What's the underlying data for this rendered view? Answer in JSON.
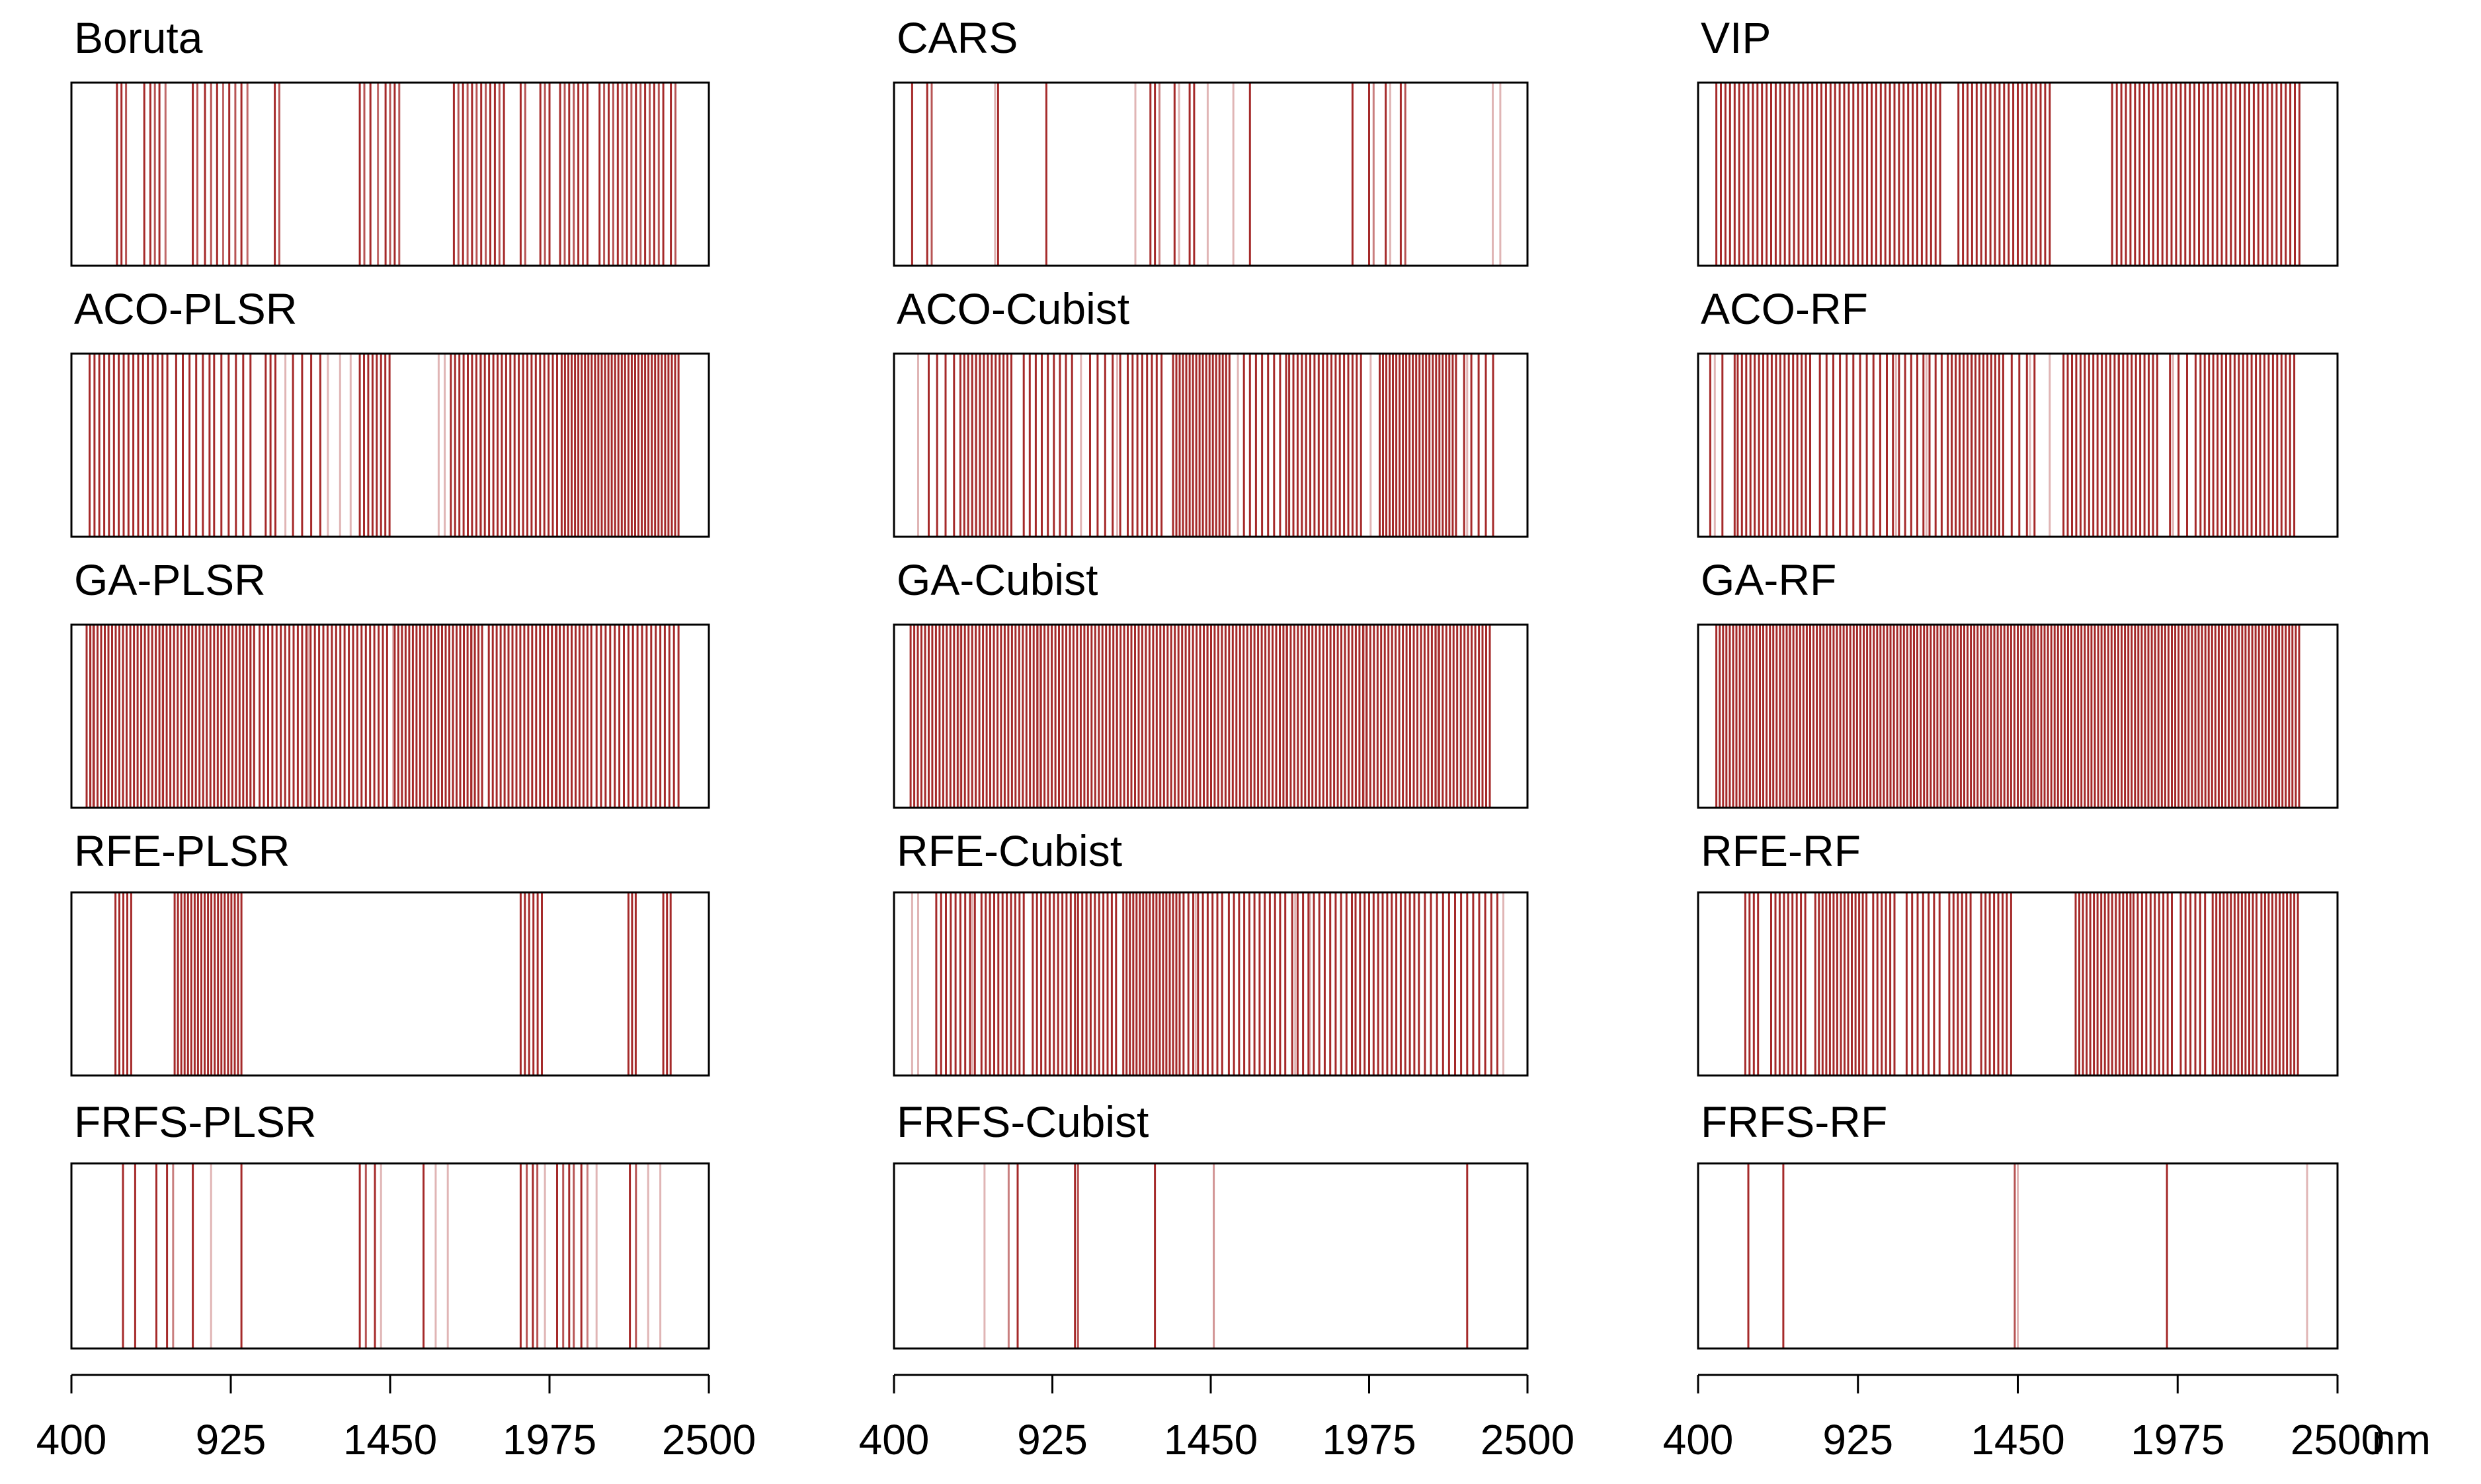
{
  "figure": {
    "colors": {
      "band": "#a52a2a",
      "frame": "#000000",
      "background": "#ffffff"
    },
    "axis_unit": "nm"
  },
  "chart_data": {
    "type": "band-selection-strip",
    "x_range": [
      400,
      2500
    ],
    "x_ticks": [
      400,
      925,
      1450,
      1975,
      2500
    ],
    "x_tick_labels": [
      "400",
      "925",
      "1450",
      "1975",
      "2500"
    ],
    "x_unit_label": "nm",
    "panels": [
      {
        "title": "Boruta",
        "bands": [
          {
            "wl": 550,
            "w": 1
          },
          {
            "wl": 565,
            "w": 1
          },
          {
            "wl": 580,
            "w": 0.8
          },
          {
            "wl": 640,
            "w": 1
          },
          {
            "wl": 660,
            "w": 1
          },
          {
            "wl": 675,
            "w": 0.8
          },
          {
            "wl": 690,
            "w": 1
          },
          {
            "wl": 710,
            "w": 0.7
          },
          {
            "wl": 800,
            "w": 1
          },
          {
            "wl": 815,
            "w": 0.8
          },
          {
            "wl": 840,
            "w": 1
          },
          {
            "wl": 860,
            "w": 0.8
          },
          {
            "wl": 880,
            "w": 1
          },
          {
            "wl": 900,
            "w": 0.7
          },
          {
            "wl": 920,
            "w": 1
          },
          {
            "wl": 940,
            "w": 0.8
          },
          {
            "wl": 960,
            "w": 1
          },
          {
            "wl": 980,
            "w": 0.7
          },
          {
            "wl": 1070,
            "w": 1
          },
          {
            "wl": 1085,
            "w": 0.8
          },
          {
            "wl": 1350,
            "w": 1
          },
          {
            "wl": 1365,
            "w": 0.8
          },
          {
            "wl": 1385,
            "w": 1
          },
          {
            "wl": 1410,
            "w": 0.7
          },
          {
            "wl": 1435,
            "w": 1
          },
          {
            "wl": 1450,
            "w": 0.8
          },
          {
            "wl": 1465,
            "w": 1
          },
          {
            "wl": 1480,
            "w": 0.8
          },
          {
            "wl": 1660,
            "w": 1
          },
          {
            "wl": 1675,
            "w": 0.8
          },
          {
            "wl": 1690,
            "w": 1
          },
          {
            "wl": 1705,
            "w": 0.8
          },
          {
            "wl": 1720,
            "w": 1
          },
          {
            "wl": 1735,
            "w": 0.8
          },
          {
            "wl": 1750,
            "w": 1
          },
          {
            "wl": 1765,
            "w": 0.8
          },
          {
            "wl": 1780,
            "w": 1
          },
          {
            "wl": 1795,
            "w": 1
          },
          {
            "wl": 1810,
            "w": 0.8
          },
          {
            "wl": 1825,
            "w": 1
          },
          {
            "wl": 1880,
            "w": 1
          },
          {
            "wl": 1895,
            "w": 0.8
          },
          {
            "wl": 1945,
            "w": 1
          },
          {
            "wl": 1960,
            "w": 0.8
          },
          {
            "wl": 1975,
            "w": 1
          },
          {
            "wl": 2010,
            "w": 1
          },
          {
            "wl": 2025,
            "w": 0.8
          },
          {
            "wl": 2040,
            "w": 1
          },
          {
            "wl": 2055,
            "w": 0.8
          },
          {
            "wl": 2070,
            "w": 1
          },
          {
            "wl": 2085,
            "w": 0.8
          },
          {
            "wl": 2100,
            "w": 1
          },
          {
            "wl": 2140,
            "w": 1
          },
          {
            "wl": 2155,
            "w": 0.8
          },
          {
            "wl": 2170,
            "w": 1
          },
          {
            "wl": 2185,
            "w": 0.8
          },
          {
            "wl": 2200,
            "w": 1
          },
          {
            "wl": 2215,
            "w": 0.8
          },
          {
            "wl": 2230,
            "w": 1
          },
          {
            "wl": 2245,
            "w": 0.8
          },
          {
            "wl": 2260,
            "w": 1
          },
          {
            "wl": 2275,
            "w": 0.8
          },
          {
            "wl": 2290,
            "w": 1
          },
          {
            "wl": 2305,
            "w": 0.8
          },
          {
            "wl": 2320,
            "w": 1
          },
          {
            "wl": 2335,
            "w": 0.8
          },
          {
            "wl": 2350,
            "w": 1
          },
          {
            "wl": 2375,
            "w": 1
          },
          {
            "wl": 2390,
            "w": 0.8
          }
        ]
      },
      {
        "title": "CARS",
        "bands": [
          {
            "wl": 460,
            "w": 1
          },
          {
            "wl": 510,
            "w": 1
          },
          {
            "wl": 525,
            "w": 0.8
          },
          {
            "wl": 735,
            "w": 0.35
          },
          {
            "wl": 745,
            "w": 1
          },
          {
            "wl": 905,
            "w": 1
          },
          {
            "wl": 1200,
            "w": 0.35
          },
          {
            "wl": 1250,
            "w": 1
          },
          {
            "wl": 1265,
            "w": 1
          },
          {
            "wl": 1280,
            "w": 0.6
          },
          {
            "wl": 1330,
            "w": 1
          },
          {
            "wl": 1345,
            "w": 0.35
          },
          {
            "wl": 1380,
            "w": 1
          },
          {
            "wl": 1395,
            "w": 1
          },
          {
            "wl": 1440,
            "w": 0.35
          },
          {
            "wl": 1525,
            "w": 0.35
          },
          {
            "wl": 1580,
            "w": 1
          },
          {
            "wl": 1920,
            "w": 1
          },
          {
            "wl": 1975,
            "w": 1
          },
          {
            "wl": 1990,
            "w": 0.6
          },
          {
            "wl": 2030,
            "w": 1
          },
          {
            "wl": 2045,
            "w": 0.35
          },
          {
            "wl": 2080,
            "w": 1
          },
          {
            "wl": 2095,
            "w": 0.8
          },
          {
            "wl": 2385,
            "w": 0.35
          },
          {
            "wl": 2410,
            "w": 0.35
          }
        ]
      },
      {
        "title": "VIP",
        "ranges": [
          {
            "from": 460,
            "to": 1200,
            "step": 15
          },
          {
            "from": 1255,
            "to": 1560,
            "step": 15
          },
          {
            "from": 1760,
            "to": 2385,
            "step": 15
          }
        ]
      },
      {
        "title": "ACO-PLSR",
        "ranges": [
          {
            "from": 460,
            "to": 730,
            "step": 16
          },
          {
            "from": 745,
            "to": 860,
            "step": 22
          },
          {
            "from": 870,
            "to": 1000,
            "step": 24
          },
          {
            "from": 1040,
            "to": 1075,
            "step": 16
          },
          {
            "from": 1130,
            "to": 1220,
            "step": 30
          },
          {
            "from": 1350,
            "to": 1460,
            "step": 14
          },
          {
            "from": 1650,
            "to": 2010,
            "step": 14
          },
          {
            "from": 2015,
            "to": 2400,
            "step": 11
          }
        ],
        "light_bands": [
          1105,
          1245,
          1285,
          1320,
          1610,
          1630,
          1750
        ]
      },
      {
        "title": "ACO-Cubist",
        "ranges": [
          {
            "from": 515,
            "to": 600,
            "step": 28
          },
          {
            "from": 620,
            "to": 800,
            "step": 13
          },
          {
            "from": 830,
            "to": 1000,
            "step": 20
          },
          {
            "from": 1050,
            "to": 1150,
            "step": 25
          },
          {
            "from": 1175,
            "to": 1300,
            "step": 16
          },
          {
            "from": 1325,
            "to": 1520,
            "step": 11
          },
          {
            "from": 1560,
            "to": 1700,
            "step": 20
          },
          {
            "from": 1710,
            "to": 1960,
            "step": 14
          },
          {
            "from": 2010,
            "to": 2270,
            "step": 11
          },
          {
            "from": 2290,
            "to": 2390,
            "step": 24
          }
        ],
        "light_bands": [
          480,
          1020,
          1140,
          1540,
          1980,
          2300
        ]
      },
      {
        "title": "ACO-RF",
        "ranges": [
          {
            "from": 440,
            "to": 530,
            "step": 40
          },
          {
            "from": 530,
            "to": 780,
            "step": 14
          },
          {
            "from": 800,
            "to": 1000,
            "step": 22
          },
          {
            "from": 1020,
            "to": 1200,
            "step": 20
          },
          {
            "from": 1220,
            "to": 1410,
            "step": 13
          },
          {
            "from": 1430,
            "to": 1510,
            "step": 25
          },
          {
            "from": 1600,
            "to": 1920,
            "step": 14
          },
          {
            "from": 1950,
            "to": 2050,
            "step": 28
          },
          {
            "from": 2050,
            "to": 2360,
            "step": 14
          }
        ],
        "light_bands": [
          455,
          800,
          1050,
          1150,
          1300,
          1490,
          1555,
          1780,
          1960
        ]
      },
      {
        "title": "GA-PLSR",
        "ranges": [
          {
            "from": 450,
            "to": 1010,
            "step": 12
          },
          {
            "from": 1020,
            "to": 1450,
            "step": 14
          },
          {
            "from": 1465,
            "to": 1760,
            "step": 12
          },
          {
            "from": 1775,
            "to": 2120,
            "step": 13
          },
          {
            "from": 2130,
            "to": 2400,
            "step": 15
          }
        ],
        "light_bands": [
          470,
          700,
          990,
          1180,
          1460,
          1720,
          2000,
          2250
        ]
      },
      {
        "title": "GA-Cubist",
        "ranges": [
          {
            "from": 455,
            "to": 2380,
            "step": 12
          }
        ],
        "light_bands": [
          620,
          880,
          1140,
          1440,
          1700,
          1960,
          2200
        ]
      },
      {
        "title": "GA-RF",
        "ranges": [
          {
            "from": 460,
            "to": 2380,
            "step": 11
          }
        ],
        "light_bands": [
          700,
          1100,
          1500,
          1900,
          2300
        ]
      },
      {
        "title": "RFE-PLSR",
        "ranges": [
          {
            "from": 545,
            "to": 600,
            "step": 13
          },
          {
            "from": 740,
            "to": 960,
            "step": 11
          },
          {
            "from": 1880,
            "to": 1950,
            "step": 14
          },
          {
            "from": 2235,
            "to": 2260,
            "step": 12
          },
          {
            "from": 2350,
            "to": 2375,
            "step": 12
          }
        ]
      },
      {
        "title": "RFE-Cubist",
        "ranges": [
          {
            "from": 540,
            "to": 680,
            "step": 16
          },
          {
            "from": 690,
            "to": 840,
            "step": 14
          },
          {
            "from": 860,
            "to": 1000,
            "step": 14
          },
          {
            "from": 1010,
            "to": 1140,
            "step": 14
          },
          {
            "from": 1160,
            "to": 1350,
            "step": 11
          },
          {
            "from": 1360,
            "to": 1500,
            "step": 16
          },
          {
            "from": 1510,
            "to": 1700,
            "step": 17
          },
          {
            "from": 1720,
            "to": 1920,
            "step": 18
          },
          {
            "from": 1930,
            "to": 2150,
            "step": 15
          },
          {
            "from": 2160,
            "to": 2400,
            "step": 20
          }
        ],
        "light_bands": [
          460,
          480,
          660,
          1040,
          1400,
          1730,
          1780,
          2420
        ]
      },
      {
        "title": "RFE-RF",
        "ranges": [
          {
            "from": 555,
            "to": 600,
            "step": 14
          },
          {
            "from": 640,
            "to": 760,
            "step": 14
          },
          {
            "from": 785,
            "to": 960,
            "step": 12
          },
          {
            "from": 975,
            "to": 1050,
            "step": 14
          },
          {
            "from": 1085,
            "to": 1200,
            "step": 18
          },
          {
            "from": 1225,
            "to": 1300,
            "step": 14
          },
          {
            "from": 1330,
            "to": 1430,
            "step": 14
          },
          {
            "from": 1640,
            "to": 1820,
            "step": 12
          },
          {
            "from": 1830,
            "to": 1960,
            "step": 14
          },
          {
            "from": 1985,
            "to": 2070,
            "step": 16
          },
          {
            "from": 2090,
            "to": 2240,
            "step": 12
          },
          {
            "from": 2250,
            "to": 2380,
            "step": 12
          }
        ]
      },
      {
        "title": "FRFS-PLSR",
        "bands": [
          {
            "wl": 570,
            "w": 1
          },
          {
            "wl": 610,
            "w": 1
          },
          {
            "wl": 680,
            "w": 1
          },
          {
            "wl": 715,
            "w": 1
          },
          {
            "wl": 735,
            "w": 0.6
          },
          {
            "wl": 800,
            "w": 1
          },
          {
            "wl": 860,
            "w": 0.35
          },
          {
            "wl": 960,
            "w": 1
          },
          {
            "wl": 1350,
            "w": 1
          },
          {
            "wl": 1370,
            "w": 0.8
          },
          {
            "wl": 1400,
            "w": 1
          },
          {
            "wl": 1420,
            "w": 0.35
          },
          {
            "wl": 1560,
            "w": 1
          },
          {
            "wl": 1600,
            "w": 0.35
          },
          {
            "wl": 1640,
            "w": 0.35
          },
          {
            "wl": 1880,
            "w": 1
          },
          {
            "wl": 1900,
            "w": 0.8
          },
          {
            "wl": 1920,
            "w": 1
          },
          {
            "wl": 1935,
            "w": 0.8
          },
          {
            "wl": 1960,
            "w": 0.35
          },
          {
            "wl": 2000,
            "w": 1
          },
          {
            "wl": 2020,
            "w": 0.8
          },
          {
            "wl": 2040,
            "w": 1
          },
          {
            "wl": 2055,
            "w": 0.8
          },
          {
            "wl": 2080,
            "w": 1
          },
          {
            "wl": 2100,
            "w": 0.6
          },
          {
            "wl": 2130,
            "w": 0.35
          },
          {
            "wl": 2240,
            "w": 1
          },
          {
            "wl": 2260,
            "w": 0.8
          },
          {
            "wl": 2300,
            "w": 0.35
          },
          {
            "wl": 2340,
            "w": 0.35
          }
        ]
      },
      {
        "title": "FRFS-Cubist",
        "bands": [
          {
            "wl": 700,
            "w": 0.35
          },
          {
            "wl": 780,
            "w": 0.6
          },
          {
            "wl": 810,
            "w": 1
          },
          {
            "wl": 1000,
            "w": 1
          },
          {
            "wl": 1010,
            "w": 0.8
          },
          {
            "wl": 1265,
            "w": 1
          },
          {
            "wl": 1460,
            "w": 0.5
          },
          {
            "wl": 2300,
            "w": 1
          }
        ]
      },
      {
        "title": "FRFS-RF",
        "bands": [
          {
            "wl": 565,
            "w": 1
          },
          {
            "wl": 680,
            "w": 1
          },
          {
            "wl": 1440,
            "w": 0.8
          },
          {
            "wl": 1450,
            "w": 0.35
          },
          {
            "wl": 1940,
            "w": 1
          },
          {
            "wl": 2400,
            "w": 0.35
          }
        ]
      }
    ]
  }
}
